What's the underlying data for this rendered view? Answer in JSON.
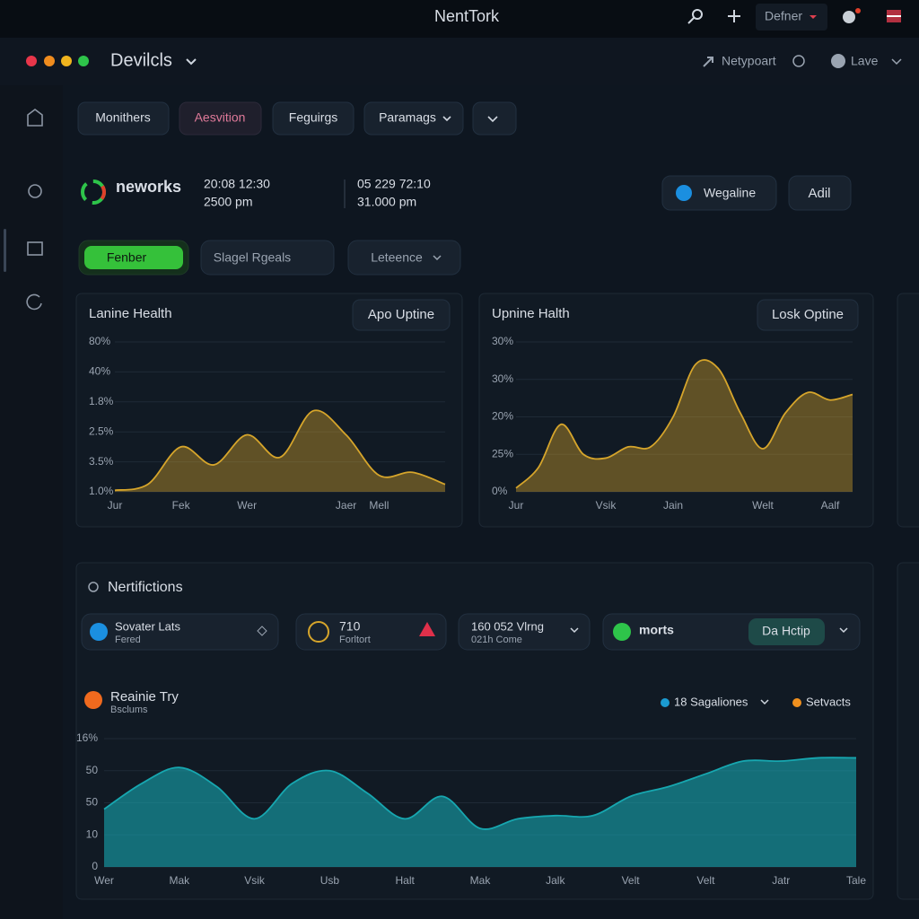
{
  "header": {
    "title": "NentTork",
    "user": "Defner"
  },
  "toolbar": {
    "app": "Devilcls",
    "workspace": "Netypoart",
    "mode": "Lave"
  },
  "tabs": [
    "Monithers",
    "Aesvition",
    "Feguirgs",
    "Paramags"
  ],
  "status": {
    "name": "neworks",
    "time1": "20:08 12:30",
    "time2": "2500 pm",
    "time3": "05 229 72:10",
    "time4": "31.000 pm",
    "buttons": [
      "Wegaline",
      "Adil"
    ]
  },
  "filters": [
    "Fenber",
    "Slagel Rgeals",
    "Leteence"
  ],
  "charts": [
    {
      "type": "area",
      "title": "Lanine Health",
      "button": "Apo Uptine",
      "color": "#d6a52b",
      "categories": [
        "Jur",
        null,
        "Fek",
        null,
        "Wer",
        null,
        null,
        "Jaer",
        "Mell",
        null,
        null
      ],
      "values": [
        0.05,
        0.25,
        1.5,
        0.9,
        1.9,
        1.15,
        2.7,
        1.9,
        0.55,
        0.65,
        0.25
      ],
      "ylim": [
        0,
        5
      ],
      "yticks": [
        {
          "value": 0,
          "label": "1.0%"
        },
        {
          "value": 1,
          "label": "3.5%"
        },
        {
          "value": 2,
          "label": "2.5%"
        },
        {
          "value": 3,
          "label": "1.8%"
        },
        {
          "value": 4,
          "label": "40%"
        },
        {
          "value": 5,
          "label": "80%"
        }
      ]
    },
    {
      "type": "area",
      "title": "Upnine Halth",
      "button": "Losk Optine",
      "color": "#d6a52b",
      "categories": [
        "Jur",
        null,
        null,
        null,
        "Vsik",
        null,
        null,
        "Jain",
        null,
        null,
        null,
        "Welt",
        null,
        null,
        "Aalf",
        null
      ],
      "values": [
        0.1,
        0.65,
        1.8,
        1.0,
        0.9,
        1.2,
        1.2,
        2.0,
        3.4,
        3.3,
        2.1,
        1.15,
        2.1,
        2.65,
        2.45,
        2.6
      ],
      "ylim": [
        0,
        4
      ],
      "yticks": [
        {
          "value": 0,
          "label": "0%"
        },
        {
          "value": 1,
          "label": "25%"
        },
        {
          "value": 2,
          "label": "20%"
        },
        {
          "value": 3,
          "label": "30%"
        },
        {
          "value": 4,
          "label": "30%"
        }
      ]
    }
  ],
  "notifications": {
    "title": "Nertifictions",
    "cards": [
      {
        "title": "Sovater Lats",
        "sub": "Fered"
      },
      {
        "title": "710",
        "sub": "Forltort"
      },
      {
        "title": "160 052 Vlrng",
        "sub": "021h Come"
      },
      {
        "title": "morts",
        "button": "Da Hctip"
      }
    ]
  },
  "trend": {
    "type": "area",
    "title": "Reainie Try",
    "subtitle": "Bsclums",
    "color": "#17a7b0",
    "legend": [
      {
        "name": "18 Sagaliones",
        "color": "#1b9bd1"
      },
      {
        "name": "Setvacts",
        "color": "#f0901e"
      }
    ],
    "categories": [
      "Wer",
      null,
      "Mak",
      null,
      "Vsik",
      null,
      "Usb",
      null,
      "Halt",
      null,
      "Mak",
      null,
      "Jalk",
      null,
      "Velt",
      null,
      "Velt",
      null,
      "Jatr",
      null,
      "Tale"
    ],
    "values": [
      1.8,
      2.6,
      3.1,
      2.5,
      1.5,
      2.6,
      3.0,
      2.3,
      1.5,
      2.2,
      1.2,
      1.5,
      1.6,
      1.6,
      2.2,
      2.5,
      2.9,
      3.3,
      3.3,
      3.4,
      3.4
    ],
    "ylim": [
      0,
      4
    ],
    "yticks": [
      0,
      {
        "value": 1,
        "label": "10"
      },
      {
        "value": 2,
        "label": "50"
      },
      {
        "value": 3,
        "label": "50"
      },
      {
        "value": 4,
        "label": "16%"
      }
    ]
  }
}
